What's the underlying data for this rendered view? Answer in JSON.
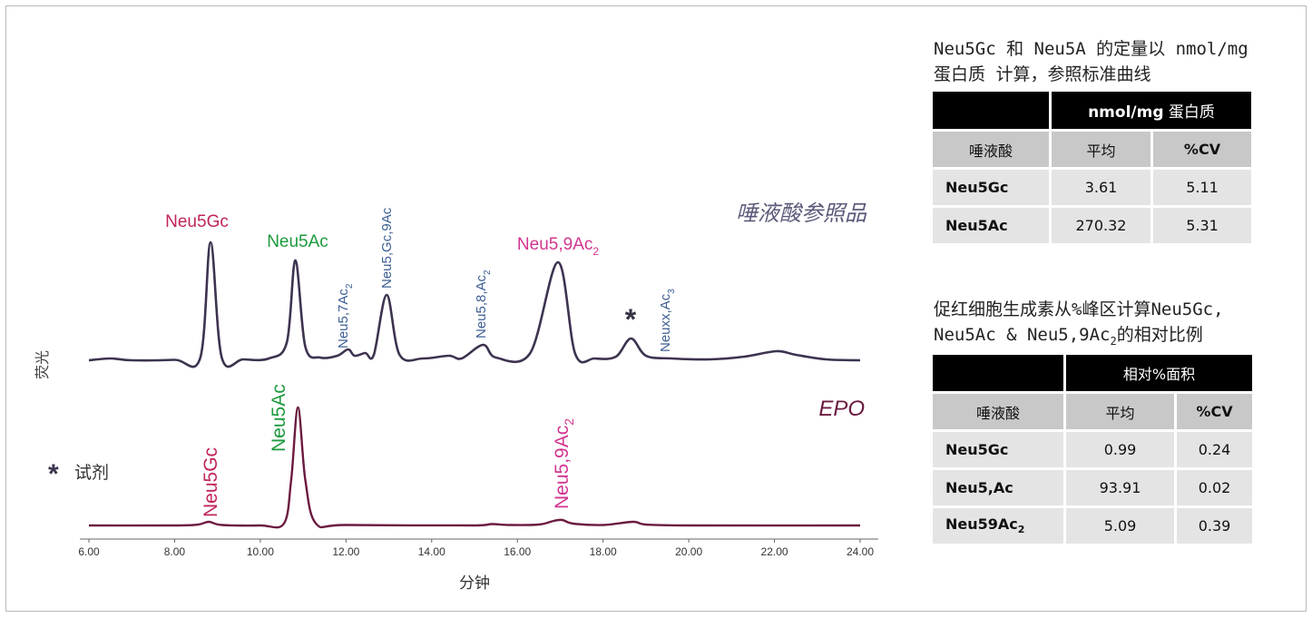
{
  "chart_data": {
    "type": "line",
    "xlabel": "分钟",
    "ylabel": "荧光",
    "xlim": [
      6.0,
      24.0
    ],
    "xticks": [
      "6.00",
      "8.00",
      "10.00",
      "12.00",
      "14.00",
      "16.00",
      "18.00",
      "20.00",
      "22.00",
      "24.00"
    ],
    "grid": false,
    "legend": "none",
    "series": [
      {
        "name": "唾液酸参照品",
        "color": "#3d3350",
        "points": [
          [
            6.0,
            0.0
          ],
          [
            6.5,
            0.2
          ],
          [
            7.0,
            0.0
          ],
          [
            8.0,
            0.05
          ],
          [
            8.6,
            0.3
          ],
          [
            8.84,
            13.0
          ],
          [
            9.1,
            0.3
          ],
          [
            9.6,
            0.1
          ],
          [
            10.2,
            0.2
          ],
          [
            10.62,
            2.0
          ],
          [
            10.82,
            11.0
          ],
          [
            11.05,
            1.5
          ],
          [
            11.4,
            0.3
          ],
          [
            11.8,
            0.5
          ],
          [
            12.05,
            1.2
          ],
          [
            12.2,
            0.5
          ],
          [
            12.45,
            0.8
          ],
          [
            12.65,
            0.6
          ],
          [
            12.95,
            7.2
          ],
          [
            13.25,
            0.6
          ],
          [
            13.8,
            0.2
          ],
          [
            14.4,
            0.5
          ],
          [
            14.7,
            0.2
          ],
          [
            15.2,
            1.7
          ],
          [
            15.5,
            0.3
          ],
          [
            16.3,
            0.8
          ],
          [
            16.95,
            10.8
          ],
          [
            17.35,
            0.7
          ],
          [
            17.8,
            0.2
          ],
          [
            18.3,
            0.4
          ],
          [
            18.65,
            2.4
          ],
          [
            19.0,
            0.5
          ],
          [
            19.6,
            0.2
          ],
          [
            20.5,
            0.1
          ],
          [
            21.3,
            0.4
          ],
          [
            22.05,
            1.0
          ],
          [
            22.5,
            0.6
          ],
          [
            23.2,
            0.1
          ],
          [
            24.0,
            0.0
          ]
        ]
      },
      {
        "name": "EPO",
        "color": "#6b1a40",
        "points": [
          [
            6.0,
            0.0
          ],
          [
            8.0,
            0.0
          ],
          [
            8.55,
            0.1
          ],
          [
            8.8,
            0.4
          ],
          [
            9.1,
            0.05
          ],
          [
            10.0,
            0.0
          ],
          [
            10.55,
            0.2
          ],
          [
            10.72,
            5.0
          ],
          [
            10.88,
            13.0
          ],
          [
            11.05,
            5.0
          ],
          [
            11.3,
            0.2
          ],
          [
            12.0,
            0.05
          ],
          [
            15.0,
            0.0
          ],
          [
            15.4,
            0.15
          ],
          [
            15.8,
            0.05
          ],
          [
            16.5,
            0.1
          ],
          [
            16.85,
            0.5
          ],
          [
            17.05,
            0.6
          ],
          [
            17.3,
            0.2
          ],
          [
            18.0,
            0.05
          ],
          [
            18.7,
            0.4
          ],
          [
            19.0,
            0.1
          ],
          [
            20.0,
            0.0
          ],
          [
            24.0,
            0.0
          ]
        ]
      }
    ],
    "peak_labels": [
      {
        "text": "Neu5Gc",
        "sub": "",
        "color": "#c0245c",
        "trace": "ref",
        "rotated": false
      },
      {
        "text": "Neu5Ac",
        "sub": "",
        "color": "#1e9a3e",
        "trace": "ref",
        "rotated": false
      },
      {
        "text": "Neu5,7Ac",
        "sub": "2",
        "color": "#3d5f94",
        "trace": "ref",
        "rotated": true
      },
      {
        "text": "Neu5,Gc,9Ac",
        "sub": "",
        "color": "#3d5f94",
        "trace": "ref",
        "rotated": true
      },
      {
        "text": "Neu5,8,Ac",
        "sub": "2",
        "color": "#3d5f94",
        "trace": "ref",
        "rotated": true
      },
      {
        "text": "Neu5,9Ac",
        "sub": "2",
        "color": "#d2358f",
        "trace": "ref",
        "rotated": false
      },
      {
        "text": "*",
        "sub": "",
        "color": "#333344",
        "trace": "ref",
        "rotated": false
      },
      {
        "text": "Neuxx,Ac",
        "sub": "3",
        "color": "#3d5f94",
        "trace": "ref",
        "rotated": true
      },
      {
        "text": "Neu5Gc",
        "sub": "",
        "color": "#c0245c",
        "trace": "epo",
        "rotated": true
      },
      {
        "text": "Neu5Ac",
        "sub": "",
        "color": "#1e9a3e",
        "trace": "epo",
        "rotated": true
      },
      {
        "text": "Neu5,9Ac",
        "sub": "2",
        "color": "#d2358f",
        "trace": "epo",
        "rotated": true
      }
    ],
    "trace_labels": {
      "ref": "唾液酸参照品",
      "epo": "EPO"
    },
    "footnote": {
      "star": "*",
      "text": "试剂"
    }
  },
  "table1": {
    "title_line1": "Neu5Gc 和 Neu5A 的定量以 nmol/mg",
    "title_line2": "蛋白质 计算，参照标准曲线",
    "header_unit_bold": "nmol/mg",
    "header_unit_rest": " 蛋白质",
    "col_name": "唾液酸",
    "col_mean": "平均",
    "col_cv": "%CV",
    "rows": [
      {
        "name": "Neu5Gc",
        "mean": "3.61",
        "cv": "5.11"
      },
      {
        "name": "Neu5Ac",
        "mean": "270.32",
        "cv": "5.31"
      }
    ]
  },
  "table2": {
    "title_line1": "促红细胞生成素从%峰区计算Neu5Gc,",
    "title_line2_pre": "Neu5Ac & Neu5,9Ac",
    "title_line2_sub": "2",
    "title_line2_post": "的相对比例",
    "header_unit": "相对%面积",
    "col_name": "唾液酸",
    "col_mean": "平均",
    "col_cv": "%CV",
    "rows": [
      {
        "name": "Neu5Gc",
        "sub": "",
        "mean": "0.99",
        "cv": "0.24"
      },
      {
        "name": "Neu5,Ac",
        "sub": "",
        "mean": "93.91",
        "cv": "0.02"
      },
      {
        "name": "Neu59Ac",
        "sub": "2",
        "mean": "5.09",
        "cv": "0.39"
      }
    ]
  }
}
